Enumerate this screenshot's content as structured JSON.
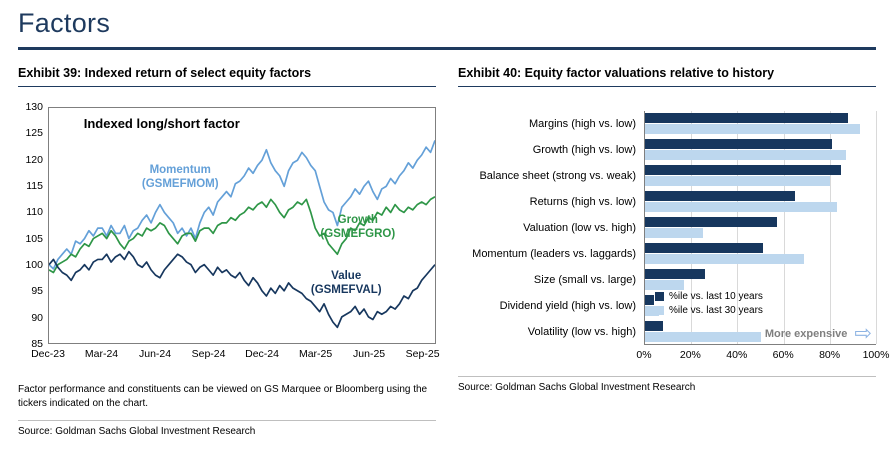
{
  "page": {
    "title": "Factors"
  },
  "left": {
    "exhibit_title": "Exhibit 39: Indexed return of select equity factors",
    "footnote": "Factor performance and constituents can be viewed on GS Marquee or Bloomberg using the tickers indicated on the chart.",
    "source": "Source: Goldman Sachs Global Investment Research"
  },
  "right": {
    "exhibit_title": "Exhibit 40: Equity factor valuations relative to history",
    "source": "Source: Goldman Sachs Global Investment Research"
  },
  "colors": {
    "navy": "#17375E",
    "light_blue_line": "#64A0D8",
    "pale_blue_bar": "#BDD7EE",
    "green": "#2E9647",
    "heading_navy": "#1E3A5E"
  },
  "chart_data": [
    {
      "type": "line",
      "title": "Indexed long/short factor",
      "ylim": [
        85,
        130
      ],
      "y_ticks": [
        85,
        90,
        95,
        100,
        105,
        110,
        115,
        120,
        125,
        130
      ],
      "x_tick_labels": [
        "Dec-23",
        "Mar-24",
        "Jun-24",
        "Sep-24",
        "Dec-24",
        "Mar-25",
        "Jun-25",
        "Sep-25"
      ],
      "x_tick_indices": [
        0,
        12,
        24,
        36,
        48,
        60,
        72,
        84
      ],
      "grid": false,
      "series": [
        {
          "name": "Momentum",
          "ticker": "(GSMEFMOM)",
          "color": "#64A0D8",
          "values": [
            100.0,
            99.2,
            101.0,
            102.0,
            103.0,
            102.0,
            104.5,
            104.0,
            105.0,
            106.5,
            105.5,
            107.0,
            107.0,
            105.5,
            107.5,
            106.0,
            106.0,
            107.5,
            105.0,
            106.5,
            107.0,
            108.5,
            109.5,
            108.0,
            110.0,
            111.5,
            110.0,
            109.0,
            108.0,
            106.0,
            107.0,
            105.5,
            107.0,
            105.0,
            108.0,
            110.0,
            111.0,
            109.5,
            112.0,
            113.0,
            114.0,
            113.0,
            115.5,
            116.0,
            117.0,
            118.5,
            117.5,
            119.0,
            120.0,
            122.0,
            119.5,
            118.0,
            117.0,
            115.0,
            118.0,
            119.5,
            120.0,
            121.5,
            120.5,
            119.0,
            118.0,
            115.0,
            112.0,
            110.5,
            110.0,
            107.5,
            111.0,
            112.0,
            113.0,
            114.5,
            113.5,
            115.0,
            116.0,
            114.0,
            112.5,
            114.5,
            115.0,
            116.5,
            115.5,
            117.0,
            118.0,
            119.5,
            118.5,
            120.0,
            121.0,
            122.5,
            121.5,
            123.8
          ]
        },
        {
          "name": "Growth",
          "ticker": "(GSMEFGRO)",
          "color": "#2E9647",
          "values": [
            99.0,
            98.5,
            100.0,
            100.5,
            101.0,
            102.0,
            101.5,
            103.0,
            104.0,
            103.5,
            105.0,
            105.5,
            106.0,
            105.0,
            106.5,
            105.5,
            104.0,
            103.0,
            104.5,
            105.0,
            106.0,
            105.5,
            107.0,
            106.5,
            107.0,
            108.0,
            107.5,
            106.0,
            105.0,
            104.0,
            105.5,
            106.0,
            106.0,
            104.5,
            106.5,
            107.0,
            107.0,
            106.0,
            107.5,
            108.0,
            108.0,
            109.0,
            108.5,
            109.5,
            110.0,
            111.0,
            110.5,
            111.5,
            112.0,
            111.0,
            112.5,
            111.5,
            110.0,
            109.0,
            110.5,
            111.0,
            112.0,
            111.5,
            112.5,
            110.0,
            107.0,
            105.5,
            106.0,
            104.0,
            103.0,
            102.0,
            104.0,
            105.0,
            107.0,
            106.5,
            108.0,
            107.5,
            109.0,
            108.5,
            110.0,
            109.5,
            111.0,
            110.0,
            111.5,
            110.5,
            110.0,
            111.0,
            110.5,
            111.5,
            112.0,
            111.5,
            112.5,
            113.0
          ]
        },
        {
          "name": "Value",
          "ticker": "(GSMEFVAL)",
          "color": "#17375E",
          "values": [
            100.0,
            101.0,
            99.5,
            98.5,
            98.0,
            97.0,
            98.5,
            99.0,
            100.0,
            99.0,
            100.5,
            101.0,
            101.0,
            102.0,
            100.5,
            101.5,
            102.0,
            101.0,
            102.5,
            101.5,
            100.0,
            99.5,
            100.5,
            99.0,
            98.0,
            97.5,
            99.0,
            100.0,
            101.0,
            102.0,
            101.5,
            100.5,
            100.0,
            98.5,
            99.5,
            100.0,
            99.0,
            98.0,
            99.5,
            98.5,
            99.0,
            98.0,
            97.5,
            98.5,
            97.0,
            96.0,
            97.5,
            96.5,
            95.0,
            94.0,
            95.5,
            94.5,
            96.0,
            95.0,
            96.5,
            95.5,
            95.0,
            94.5,
            93.5,
            93.0,
            92.0,
            91.0,
            92.5,
            90.5,
            89.0,
            88.0,
            90.0,
            90.5,
            91.0,
            92.0,
            90.5,
            91.5,
            90.0,
            89.5,
            91.0,
            90.5,
            91.0,
            92.0,
            91.5,
            92.5,
            94.0,
            93.5,
            95.0,
            95.5,
            97.0,
            98.0,
            99.0,
            100.0
          ]
        }
      ]
    },
    {
      "type": "bar",
      "orientation": "horizontal",
      "xlim": [
        0,
        100
      ],
      "x_ticks": [
        "0%",
        "20%",
        "40%",
        "60%",
        "80%",
        "100%"
      ],
      "categories": [
        "Margins (high vs. low)",
        "Growth (high vs. low)",
        "Balance sheet (strong vs. weak)",
        "Returns (high vs. low)",
        "Valuation (low vs. high)",
        "Momentum (leaders vs. laggards)",
        "Size (small vs. large)",
        "Dividend yield (high vs. low)",
        "Volatility (low vs. high)"
      ],
      "series": [
        {
          "name": "%ile vs. last 10 years",
          "color": "#17375E",
          "values": [
            88,
            81,
            85,
            65,
            57,
            51,
            26,
            4,
            8
          ]
        },
        {
          "name": "%ile vs. last 30 years",
          "color": "#BDD7EE",
          "values": [
            93,
            87,
            80,
            83,
            25,
            69,
            17,
            6,
            50
          ]
        }
      ],
      "annotation": "More expensive",
      "legend_position": "inside-bottom-left"
    }
  ]
}
